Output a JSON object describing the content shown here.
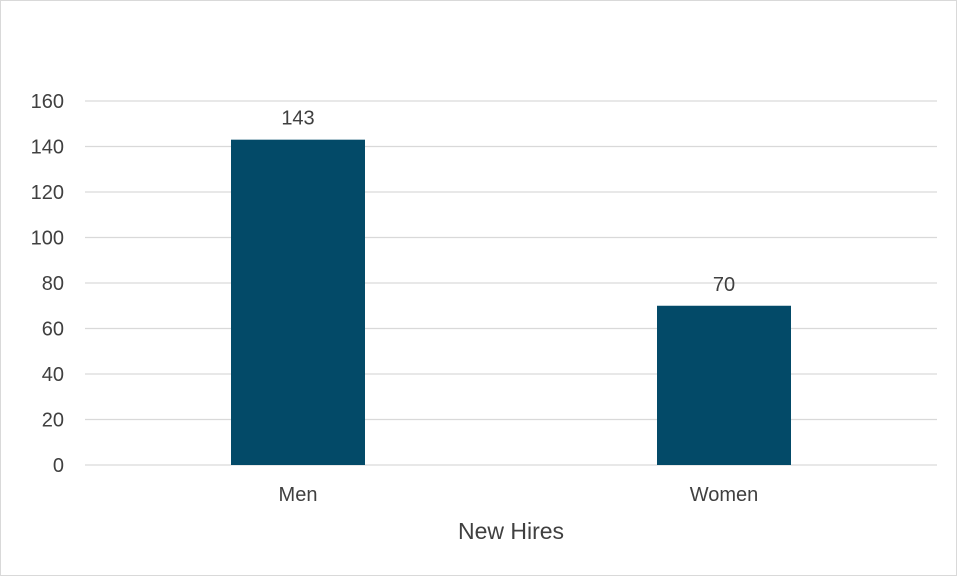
{
  "chart_data": {
    "type": "bar",
    "title": "",
    "xlabel": "New Hires",
    "ylabel": "",
    "categories": [
      "Men",
      "Women"
    ],
    "series": [
      {
        "values": [
          143,
          70
        ],
        "color": "#034a68"
      }
    ],
    "ylim": [
      0,
      160
    ],
    "yticks": [
      "0",
      "20",
      "40",
      "60",
      "80",
      "100",
      "120",
      "140",
      "160"
    ],
    "data_labels": [
      "143",
      "70"
    ],
    "grid": true,
    "legend": "none",
    "colors": {
      "bar": "#034a68",
      "grid": "#d9d9d9",
      "text": "#404040"
    }
  }
}
